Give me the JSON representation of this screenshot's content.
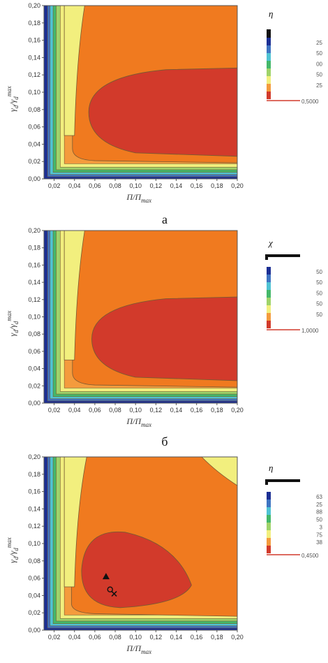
{
  "colors": {
    "levels": [
      "#d23a2b",
      "#f07a1f",
      "#f49b3d",
      "#f2ef7e",
      "#9fd36a",
      "#44b86a",
      "#4fc3d4",
      "#3f74c2",
      "#1c2f94"
    ],
    "contour_line": "#7a5a32"
  },
  "chart_data": [
    {
      "type": "contour",
      "caption": "а",
      "xlabel": "П/П_max",
      "ylabel": "γ_d/γ_d^max",
      "xlim": [
        0.01,
        0.2
      ],
      "ylim": [
        0.0,
        0.2
      ],
      "x_ticks": [
        "0,02",
        "0,04",
        "0,06",
        "0,08",
        "0,10",
        "0,12",
        "0,14",
        "0,16",
        "0,18",
        "0,20"
      ],
      "y_ticks": [
        "0,00",
        "0,02",
        "0,04",
        "0,06",
        "0,08",
        "0,10",
        "0,12",
        "0,14",
        "0,16",
        "0,18",
        "0,20"
      ],
      "legend_title": "η",
      "legend_labels": [
        "25",
        "50",
        "00",
        "50",
        "25",
        "0,5000"
      ],
      "yellow_corner": false,
      "markers": []
    },
    {
      "type": "contour",
      "caption": "б",
      "xlabel": "П/П_max",
      "ylabel": "γ_d/γ_d^max",
      "xlim": [
        0.01,
        0.2
      ],
      "ylim": [
        0.0,
        0.2
      ],
      "x_ticks": [
        "0,02",
        "0,04",
        "0,06",
        "0,08",
        "0,10",
        "0,12",
        "0,14",
        "0,16",
        "0,18",
        "0,20"
      ],
      "y_ticks": [
        "0,00",
        "0,02",
        "0,04",
        "0,06",
        "0,08",
        "0,10",
        "0,12",
        "0,14",
        "0,16",
        "0,18",
        "0,20"
      ],
      "legend_title": "χ",
      "legend_labels": [
        "50",
        "50",
        "50",
        "50",
        "50",
        "1,0000"
      ],
      "yellow_corner": false,
      "markers": []
    },
    {
      "type": "contour",
      "caption": "",
      "xlabel": "П/П_max",
      "ylabel": "γ_d/γ_d^max",
      "xlim": [
        0.01,
        0.2
      ],
      "ylim": [
        0.0,
        0.2
      ],
      "x_ticks": [
        "0,02",
        "0,04",
        "0,06",
        "0,08",
        "0,10",
        "0,12",
        "0,14",
        "0,16",
        "0,18",
        "0,20"
      ],
      "y_ticks": [
        "0,00",
        "0,02",
        "0,04",
        "0,06",
        "0,08",
        "0,10",
        "0,12",
        "0,14",
        "0,16",
        "0,18",
        "0,20"
      ],
      "legend_title": "η",
      "legend_labels": [
        "63",
        "25",
        "88",
        "50",
        "3",
        "75",
        "38",
        "0,4500"
      ],
      "yellow_corner": true,
      "markers": [
        {
          "shape": "triangle",
          "x": 0.071,
          "y": 0.062
        },
        {
          "shape": "circle",
          "x": 0.075,
          "y": 0.047
        },
        {
          "shape": "cross",
          "x": 0.079,
          "y": 0.042
        }
      ]
    }
  ]
}
